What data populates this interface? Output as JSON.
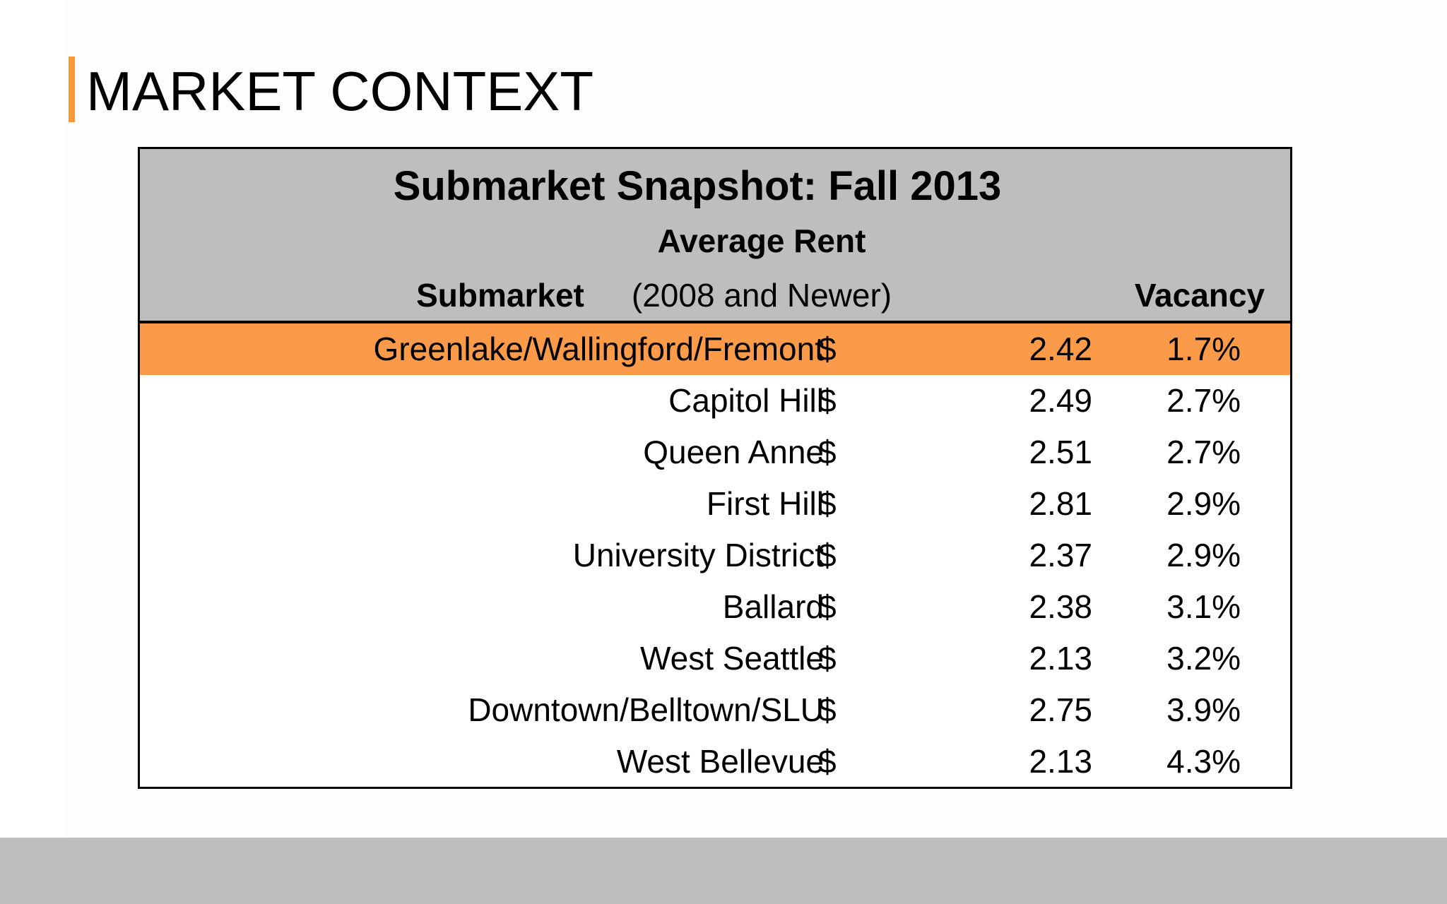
{
  "slide": {
    "title": "MARKET CONTEXT",
    "accent_color": "#f7993a"
  },
  "table": {
    "title": "Submarket Snapshot: Fall 2013",
    "headers": {
      "submarket": "Submarket",
      "rent_line1": "Average Rent",
      "rent_line2": "(2008 and Newer)",
      "vacancy": "Vacancy"
    },
    "highlight_color": "#fb9a48",
    "header_color": "#bfbebf",
    "rows": [
      {
        "submarket": "Greenlake/Wallingford/Fremont",
        "currency": "$",
        "rent": "2.42",
        "vacancy": "1.7%",
        "highlighted": true
      },
      {
        "submarket": "Capitol Hill",
        "currency": "$",
        "rent": "2.49",
        "vacancy": "2.7%",
        "highlighted": false
      },
      {
        "submarket": "Queen Anne",
        "currency": "$",
        "rent": "2.51",
        "vacancy": "2.7%",
        "highlighted": false
      },
      {
        "submarket": "First Hill",
        "currency": "$",
        "rent": "2.81",
        "vacancy": "2.9%",
        "highlighted": false
      },
      {
        "submarket": "University District",
        "currency": "$",
        "rent": "2.37",
        "vacancy": "2.9%",
        "highlighted": false
      },
      {
        "submarket": "Ballard",
        "currency": "$",
        "rent": "2.38",
        "vacancy": "3.1%",
        "highlighted": false
      },
      {
        "submarket": "West Seattle",
        "currency": "$",
        "rent": "2.13",
        "vacancy": "3.2%",
        "highlighted": false
      },
      {
        "submarket": "Downtown/Belltown/SLU",
        "currency": "$",
        "rent": "2.75",
        "vacancy": "3.9%",
        "highlighted": false
      },
      {
        "submarket": "West Bellevue",
        "currency": "$",
        "rent": "2.13",
        "vacancy": "4.3%",
        "highlighted": false
      }
    ]
  }
}
